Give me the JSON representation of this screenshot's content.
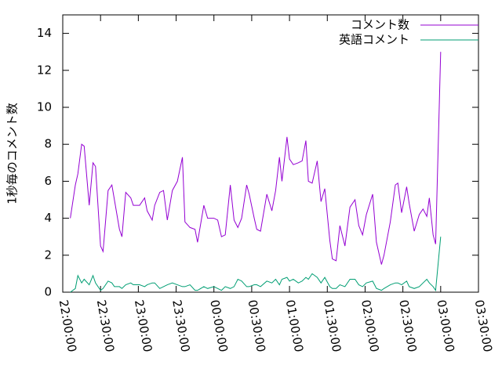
{
  "chart_data": {
    "type": "line",
    "ylabel": "1秒毎のコメント数",
    "x": [
      "22:06:00",
      "22:10:00",
      "22:12:00",
      "22:15:00",
      "22:17:00",
      "22:21:00",
      "22:24:00",
      "22:26:00",
      "22:30:00",
      "22:32:00",
      "22:36:00",
      "22:39:00",
      "22:41:00",
      "22:45:00",
      "22:47:00",
      "22:50:00",
      "22:54:00",
      "22:56:00",
      "23:01:00",
      "23:05:00",
      "23:07:00",
      "23:11:00",
      "23:13:00",
      "23:17:00",
      "23:20:00",
      "23:23:00",
      "23:27:00",
      "23:31:00",
      "23:35:00",
      "23:37:00",
      "23:41:00",
      "23:45:00",
      "23:47:00",
      "23:52:00",
      "23:55:00",
      "00:00:00",
      "00:03:00",
      "00:06:00",
      "00:09:00",
      "00:13:00",
      "00:16:00",
      "00:19:00",
      "00:22:00",
      "00:26:00",
      "00:28:00",
      "00:32:00",
      "00:34:00",
      "00:37:00",
      "00:42:00",
      "00:46:00",
      "00:49:00",
      "00:52:00",
      "00:54:00",
      "00:58:00",
      "01:00:00",
      "01:03:00",
      "01:07:00",
      "01:10:00",
      "01:13:00",
      "01:15:00",
      "01:18:00",
      "01:22:00",
      "01:25:00",
      "01:28:00",
      "01:32:00",
      "01:34:00",
      "01:37:00",
      "01:40:00",
      "01:44:00",
      "01:48:00",
      "01:52:00",
      "01:55:00",
      "01:58:00",
      "02:01:00",
      "02:06:00",
      "02:09:00",
      "02:13:00",
      "02:15:00",
      "02:20:00",
      "02:24:00",
      "02:26:00",
      "02:29:00",
      "02:33:00",
      "02:35:00",
      "02:39:00",
      "02:43:00",
      "02:46:00",
      "02:49:00",
      "02:51:00",
      "02:54:00",
      "02:56:00",
      "03:00:00"
    ],
    "series": [
      {
        "name": "コメント数",
        "color": "#9400d3",
        "values": [
          4.0,
          5.8,
          6.4,
          8.0,
          7.9,
          4.7,
          7.0,
          6.8,
          2.5,
          2.2,
          5.5,
          5.8,
          5.0,
          3.4,
          3.0,
          5.4,
          5.1,
          4.7,
          4.7,
          5.1,
          4.4,
          3.9,
          4.7,
          5.4,
          5.5,
          3.9,
          5.5,
          6.0,
          7.3,
          3.8,
          3.5,
          3.4,
          2.7,
          4.7,
          4.0,
          4.0,
          3.9,
          3.0,
          3.1,
          5.8,
          3.9,
          3.5,
          4.0,
          5.8,
          5.3,
          4.0,
          3.4,
          3.3,
          5.3,
          4.4,
          5.5,
          7.3,
          6.0,
          8.4,
          7.2,
          6.9,
          7.0,
          7.1,
          8.2,
          6.0,
          5.9,
          7.1,
          4.9,
          5.6,
          2.8,
          1.8,
          1.7,
          3.6,
          2.5,
          4.6,
          5.0,
          3.6,
          3.1,
          4.2,
          5.3,
          2.7,
          1.5,
          2.0,
          3.8,
          5.8,
          5.9,
          4.3,
          5.7,
          4.8,
          3.3,
          4.2,
          4.5,
          4.1,
          5.1,
          3.1,
          2.6,
          13.0
        ]
      },
      {
        "name": "英語コメント",
        "color": "#009e73",
        "values": [
          0,
          0.2,
          0.9,
          0.5,
          0.7,
          0.4,
          0.9,
          0.5,
          0.1,
          0.2,
          0.6,
          0.5,
          0.3,
          0.3,
          0.2,
          0.4,
          0.5,
          0.4,
          0.4,
          0.3,
          0.4,
          0.5,
          0.5,
          0.2,
          0.3,
          0.4,
          0.5,
          0.4,
          0.3,
          0.3,
          0.4,
          0.1,
          0.1,
          0.3,
          0.2,
          0.3,
          0.2,
          0.1,
          0.3,
          0.2,
          0.3,
          0.7,
          0.6,
          0.3,
          0.3,
          0.4,
          0.4,
          0.3,
          0.6,
          0.5,
          0.7,
          0.4,
          0.7,
          0.8,
          0.6,
          0.7,
          0.5,
          0.6,
          0.8,
          0.7,
          1.0,
          0.8,
          0.5,
          0.8,
          0.3,
          0.2,
          0.2,
          0.4,
          0.3,
          0.7,
          0.7,
          0.4,
          0.3,
          0.5,
          0.6,
          0.2,
          0.1,
          0.2,
          0.4,
          0.5,
          0.5,
          0.4,
          0.6,
          0.3,
          0.2,
          0.3,
          0.5,
          0.7,
          0.5,
          0.3,
          0.1,
          3.0
        ]
      }
    ],
    "xlim": [
      "22:00:00",
      "03:30:00"
    ],
    "xticks": [
      "22:00:00",
      "22:30:00",
      "23:00:00",
      "23:30:00",
      "00:00:00",
      "00:30:00",
      "01:00:00",
      "01:30:00",
      "02:00:00",
      "02:30:00",
      "03:00:00",
      "03:30:00"
    ],
    "ylim": [
      0,
      15
    ],
    "yticks": [
      0,
      2,
      4,
      6,
      8,
      10,
      12,
      14
    ],
    "legend": "top-right"
  }
}
